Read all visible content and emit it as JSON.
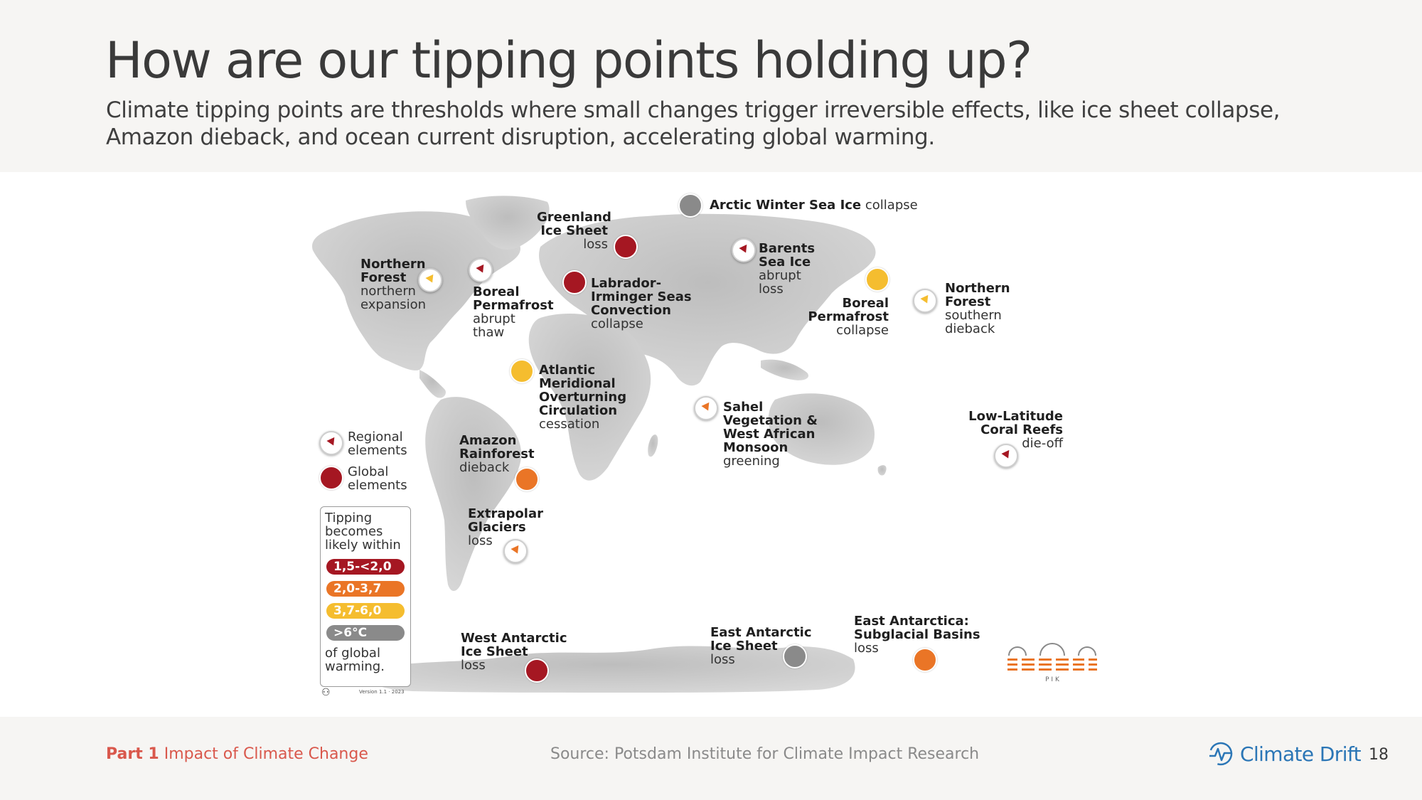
{
  "header": {
    "title": "How are our tipping points holding up?",
    "subtitle": "Climate tipping points are thresholds where small changes trigger irreversible effects, like ice sheet collapse, Amazon dieback, and ocean current disruption, accelerating global warming."
  },
  "colors": {
    "red": "#a51722",
    "orange": "#ea7526",
    "yellow": "#f5bd2f",
    "gray": "#8a8a8a",
    "accent": "#d9584c",
    "brand": "#2b76b6"
  },
  "map": {
    "elements": [
      {
        "name": "Arctic Winter Sea Ice",
        "effect": "collapse",
        "scope": "global",
        "level": "gray"
      },
      {
        "name": "Greenland Ice Sheet",
        "effect": "loss",
        "scope": "global",
        "level": "red"
      },
      {
        "name": "Barents Sea Ice",
        "effect": "abrupt loss",
        "scope": "regional",
        "level": "red"
      },
      {
        "name": "Northern Forest",
        "effect": "northern expansion",
        "scope": "regional",
        "level": "yellow"
      },
      {
        "name": "Boreal Permafrost",
        "effect": "abrupt thaw",
        "scope": "regional",
        "level": "red"
      },
      {
        "name": "Labrador-Irminger Seas Convection",
        "effect": "collapse",
        "scope": "global",
        "level": "red"
      },
      {
        "name": "Boreal Permafrost",
        "effect": "collapse",
        "scope": "global",
        "level": "yellow"
      },
      {
        "name": "Northern Forest",
        "effect": "southern dieback",
        "scope": "regional",
        "level": "yellow"
      },
      {
        "name": "Atlantic Meridional Overturning Circulation",
        "effect": "cessation",
        "scope": "global",
        "level": "yellow"
      },
      {
        "name": "Sahel Vegetation & West African Monsoon",
        "effect": "greening",
        "scope": "regional",
        "level": "orange"
      },
      {
        "name": "Amazon Rainforest",
        "effect": "dieback",
        "scope": "global",
        "level": "orange"
      },
      {
        "name": "Low-Latitude Coral Reefs",
        "effect": "die-off",
        "scope": "regional",
        "level": "red"
      },
      {
        "name": "Extrapolar Glaciers",
        "effect": "loss",
        "scope": "regional",
        "level": "orange"
      },
      {
        "name": "West Antarctic Ice Sheet",
        "effect": "loss",
        "scope": "global",
        "level": "red"
      },
      {
        "name": "East Antarctic Ice Sheet",
        "effect": "loss",
        "scope": "global",
        "level": "gray"
      },
      {
        "name": "East Antarctica: Subglacial Basins",
        "effect": "loss",
        "scope": "global",
        "level": "orange"
      }
    ],
    "labels": {
      "arctic": {
        "b": "Arctic Winter Sea Ice",
        "s": "collapse"
      },
      "greenland": {
        "b1": "Greenland",
        "b2": "Ice Sheet",
        "s": "loss"
      },
      "barents": {
        "b1": "Barents",
        "b2": "Sea Ice",
        "s1": "abrupt",
        "s2": "loss"
      },
      "nforest_na": {
        "b1": "Northern",
        "b2": "Forest",
        "s1": "northern",
        "s2": "expansion"
      },
      "bperma_na": {
        "b1": "Boreal",
        "b2": "Permafrost",
        "s1": "abrupt",
        "s2": "thaw"
      },
      "labrador": {
        "b1": "Labrador-",
        "b2": "Irminger Seas",
        "b3": "Convection",
        "s": "collapse"
      },
      "bperma_as": {
        "b1": "Boreal",
        "b2": "Permafrost",
        "s": "collapse"
      },
      "nforest_as": {
        "b1": "Northern",
        "b2": "Forest",
        "s1": "southern",
        "s2": "dieback"
      },
      "amoc": {
        "b1": "Atlantic",
        "b2": "Meridional",
        "b3": "Overturning",
        "b4": "Circulation",
        "s": "cessation"
      },
      "sahel": {
        "b1": "Sahel",
        "b2": "Vegetation &",
        "b3": "West African",
        "b4": "Monsoon",
        "s": "greening"
      },
      "amazon": {
        "b1": "Amazon",
        "b2": "Rainforest",
        "s": "dieback"
      },
      "coral": {
        "b1": "Low-Latitude",
        "b2": "Coral Reefs",
        "s": "die-off"
      },
      "glaciers": {
        "b1": "Extrapolar",
        "b2": "Glaciers",
        "s": "loss"
      },
      "wais": {
        "b1": "West Antarctic",
        "b2": "Ice Sheet",
        "s": "loss"
      },
      "eais": {
        "b1": "East Antarctic",
        "b2": "Ice Sheet",
        "s": "loss"
      },
      "eabasins": {
        "b1": "East Antarctica:",
        "b2": "Subglacial Basins",
        "s": "loss"
      }
    }
  },
  "legend": {
    "regional1": "Regional",
    "regional2": "elements",
    "global1": "Global",
    "global2": "elements",
    "box_top1": "Tipping",
    "box_top2": "becomes",
    "box_top3": "likely within",
    "levels": [
      {
        "label": "1,5-<2,0",
        "color": "#a51722"
      },
      {
        "label": "2,0-3,7",
        "color": "#ea7526"
      },
      {
        "label": "3,7-6,0",
        "color": "#f5bd2f"
      },
      {
        "label": ">6°C",
        "color": "#8a8a8a"
      }
    ],
    "box_bottom1": "of global",
    "box_bottom2": "warming.",
    "version": "Version 1.1 · 2023",
    "pik": "P I K"
  },
  "footer": {
    "part_label": "Part 1",
    "part_title": "Impact of Climate Change",
    "source": "Source: Potsdam Institute for Climate Impact Research",
    "brand": "Climate Drift",
    "page": "18"
  }
}
